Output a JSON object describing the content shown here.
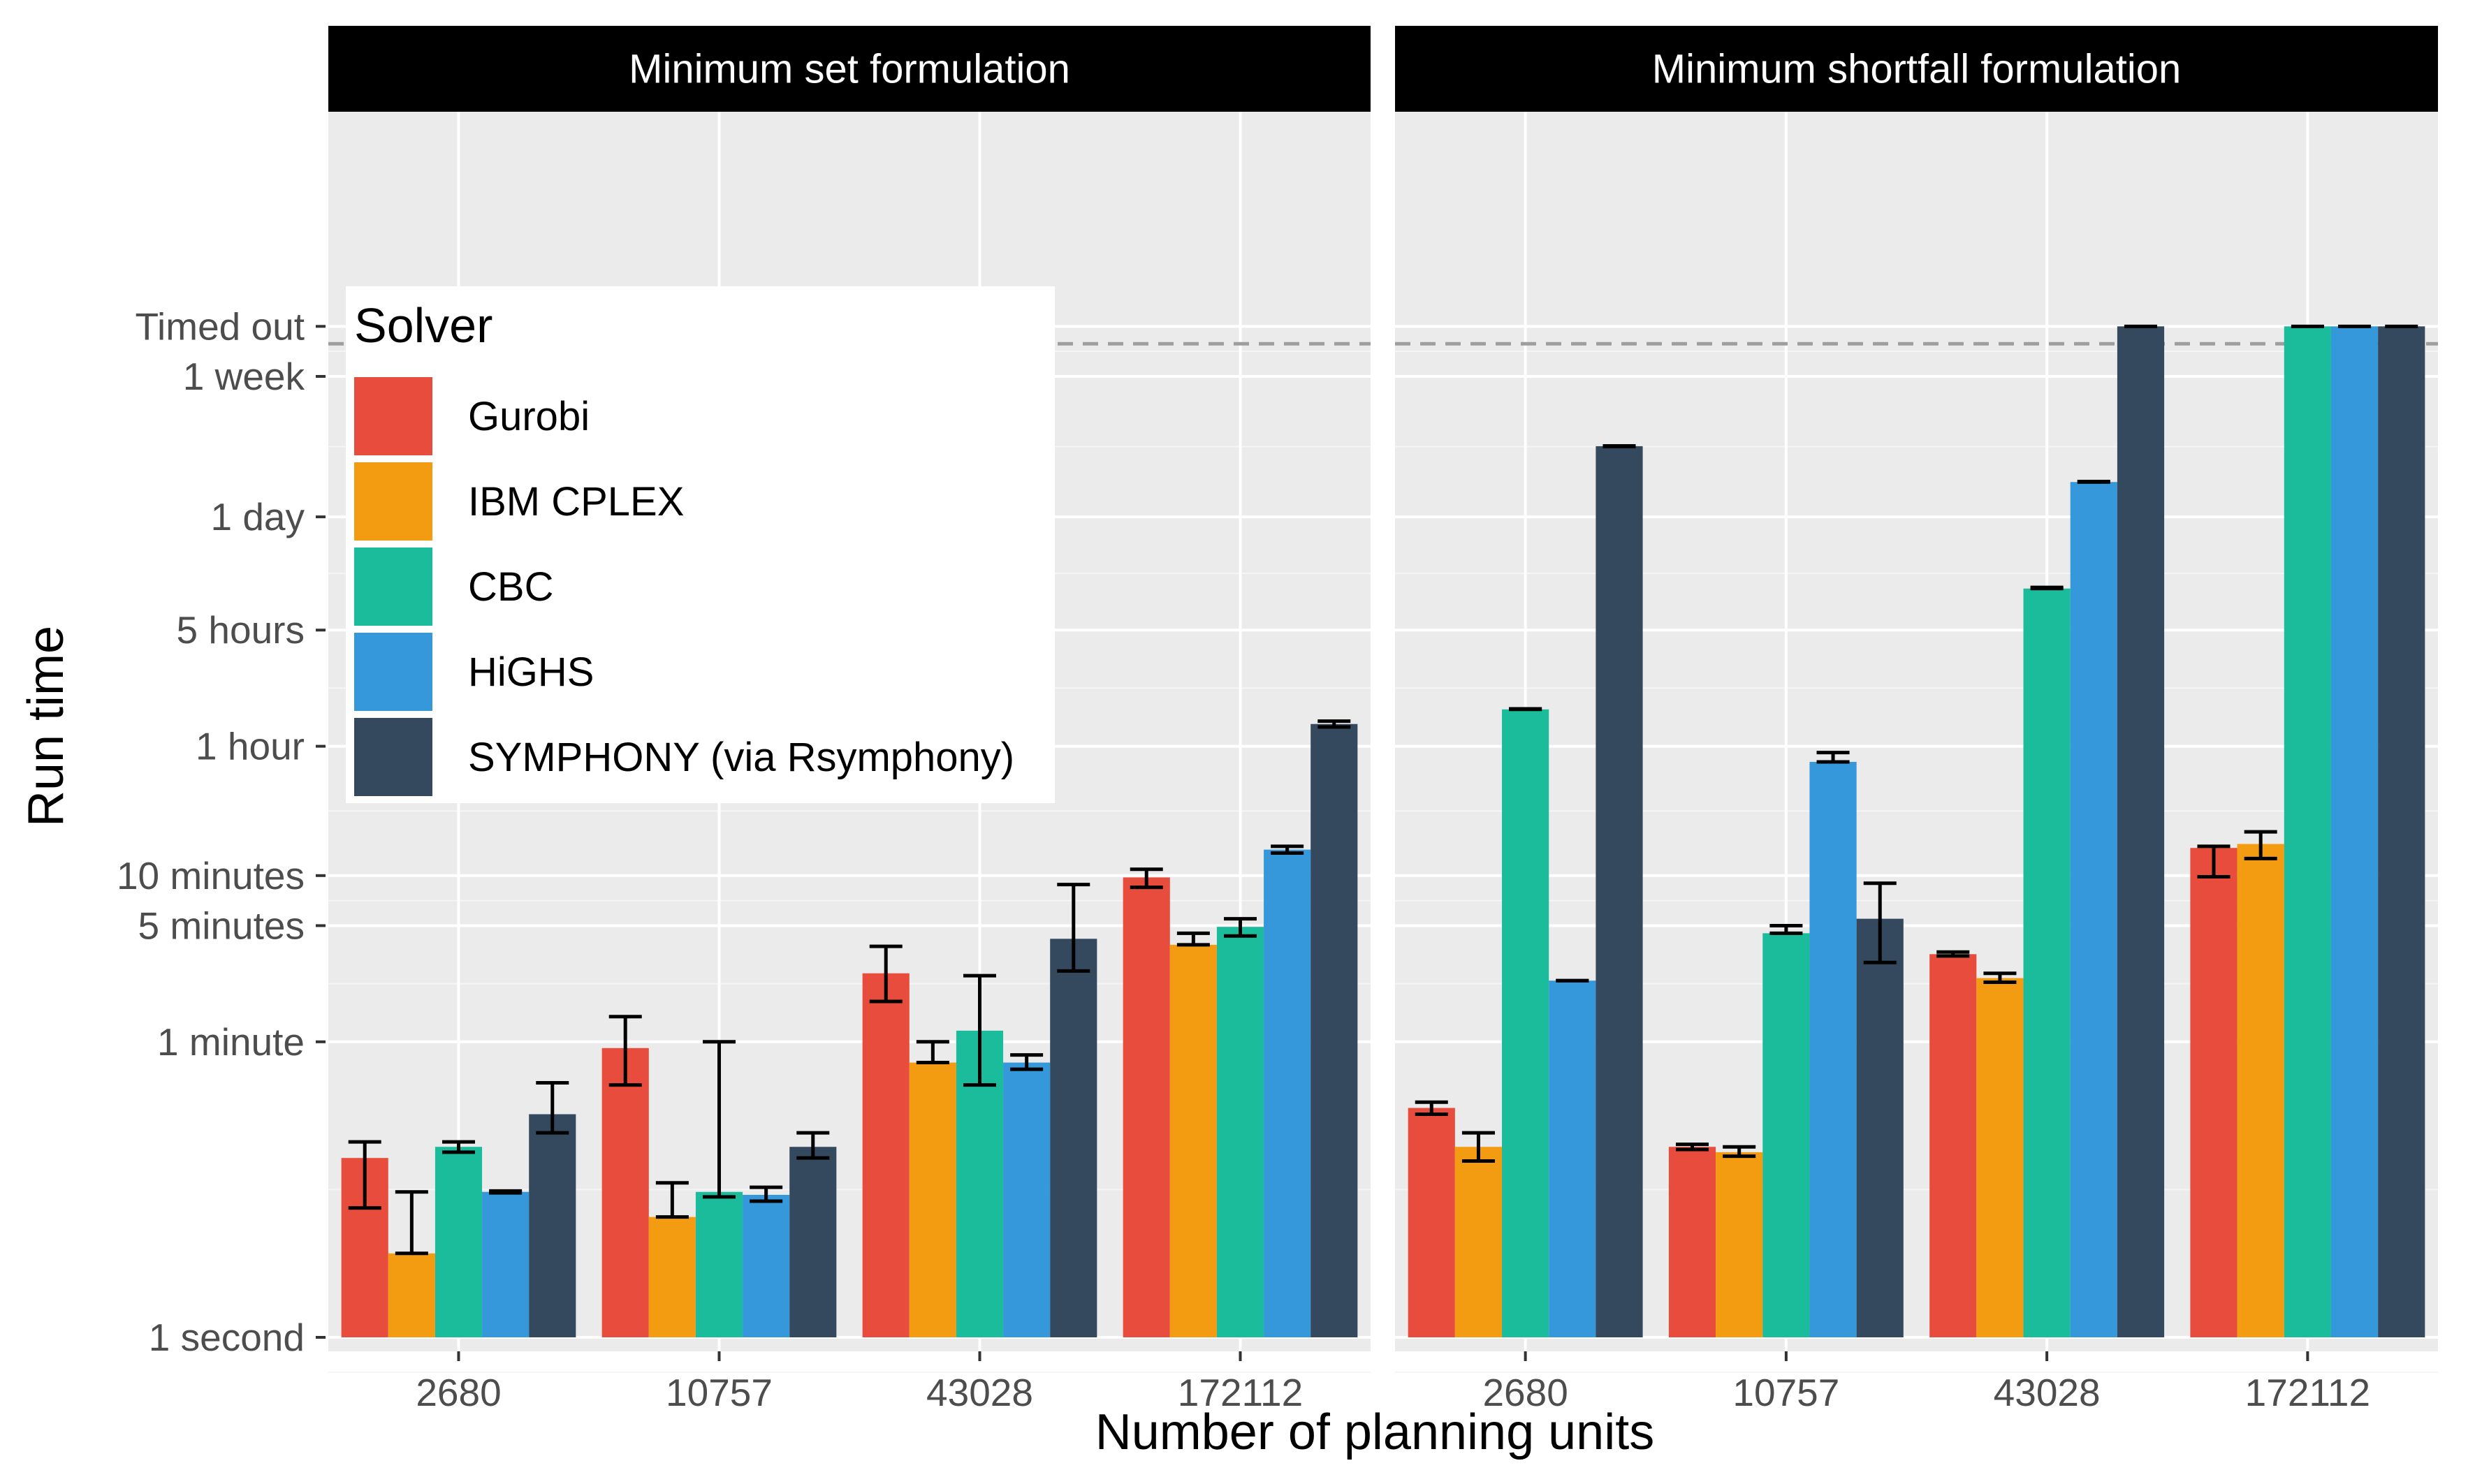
{
  "chart_data": {
    "type": "bar",
    "xlabel": "Number of planning units",
    "ylabel": "Run time",
    "y_scale": "log",
    "y_unit": "seconds",
    "ylim": [
      0.8,
      1500000
    ],
    "y_ticks": [
      {
        "label": "1 second",
        "value": 1
      },
      {
        "label": "1 minute",
        "value": 60
      },
      {
        "label": "5 minutes",
        "value": 300
      },
      {
        "label": "10 minutes",
        "value": 600
      },
      {
        "label": "1 hour",
        "value": 3600
      },
      {
        "label": "5 hours",
        "value": 18000
      },
      {
        "label": "1 day",
        "value": 86400
      },
      {
        "label": "1 week",
        "value": 604800
      },
      {
        "label": "Timed out",
        "value": 1209600
      }
    ],
    "timeout_line": 950000,
    "categories": [
      "2680",
      "10757",
      "43028",
      "172112"
    ],
    "legend": {
      "title": "Solver",
      "position": "top-left"
    },
    "grid": true,
    "panels": [
      {
        "title": "Minimum set formulation",
        "series": [
          {
            "name": "Gurobi",
            "color": "#E74C3C",
            "values": [
              12,
              55,
              155,
              585
            ],
            "err_low": [
              6,
              33,
              105,
              510
            ],
            "err_high": [
              15,
              85,
              225,
              655
            ]
          },
          {
            "name": "IBM CPLEX",
            "color": "#F39C12",
            "values": [
              3.2,
              5.3,
              45,
              230
            ],
            "err_low": null,
            "err_high": [
              7.5,
              8.5,
              60,
              270
            ]
          },
          {
            "name": "CBC",
            "color": "#1ABC9C",
            "values": [
              14,
              7.5,
              70,
              295
            ],
            "err_low": [
              13,
              7,
              33,
              260
            ],
            "err_high": [
              15,
              60,
              150,
              330
            ]
          },
          {
            "name": "HiGHS",
            "color": "#3498DB",
            "values": [
              7.5,
              7.2,
              45,
              860
            ],
            "err_low": [
              7.4,
              6.6,
              41,
              820
            ],
            "err_high": [
              7.6,
              8,
              50,
              900
            ]
          },
          {
            "name": "SYMPHONY (via Rsymphony)",
            "color": "#34495E",
            "values": [
              22,
              14,
              250,
              4900
            ],
            "err_low": [
              17,
              12,
              160,
              4700
            ],
            "err_high": [
              34,
              17,
              530,
              5100
            ]
          }
        ]
      },
      {
        "title": "Minimum shortfall formulation",
        "series": [
          {
            "name": "Gurobi",
            "color": "#E74C3C",
            "values": [
              24,
              14,
              202,
              880
            ],
            "err_low": [
              22,
              13.5,
              197,
              590
            ],
            "err_high": [
              26,
              14.5,
              208,
              900
            ]
          },
          {
            "name": "IBM CPLEX",
            "color": "#F39C12",
            "values": [
              14,
              13,
              145,
              930
            ],
            "err_low": [
              11.5,
              12.3,
              137,
              760
            ],
            "err_high": [
              17,
              14,
              155,
              1100
            ]
          },
          {
            "name": "CBC",
            "color": "#1ABC9C",
            "values": [
              6000,
              270,
              32000,
              "Timed out"
            ],
            "err_low": null,
            "err_high": [
              6050,
              300,
              32500,
              null
            ]
          },
          {
            "name": "HiGHS",
            "color": "#3498DB",
            "values": [
              140,
              2900,
              140000,
              "Timed out"
            ],
            "err_low": null,
            "err_high": [
              140,
              3300,
              141000,
              null
            ]
          },
          {
            "name": "SYMPHONY (via Rsymphony)",
            "color": "#34495E",
            "values": [
              230000,
              330,
              "Timed out",
              "Timed out"
            ],
            "err_low": [
              229000,
              180,
              null,
              null
            ],
            "err_high": [
              231000,
              540,
              null,
              null
            ]
          }
        ]
      }
    ]
  }
}
